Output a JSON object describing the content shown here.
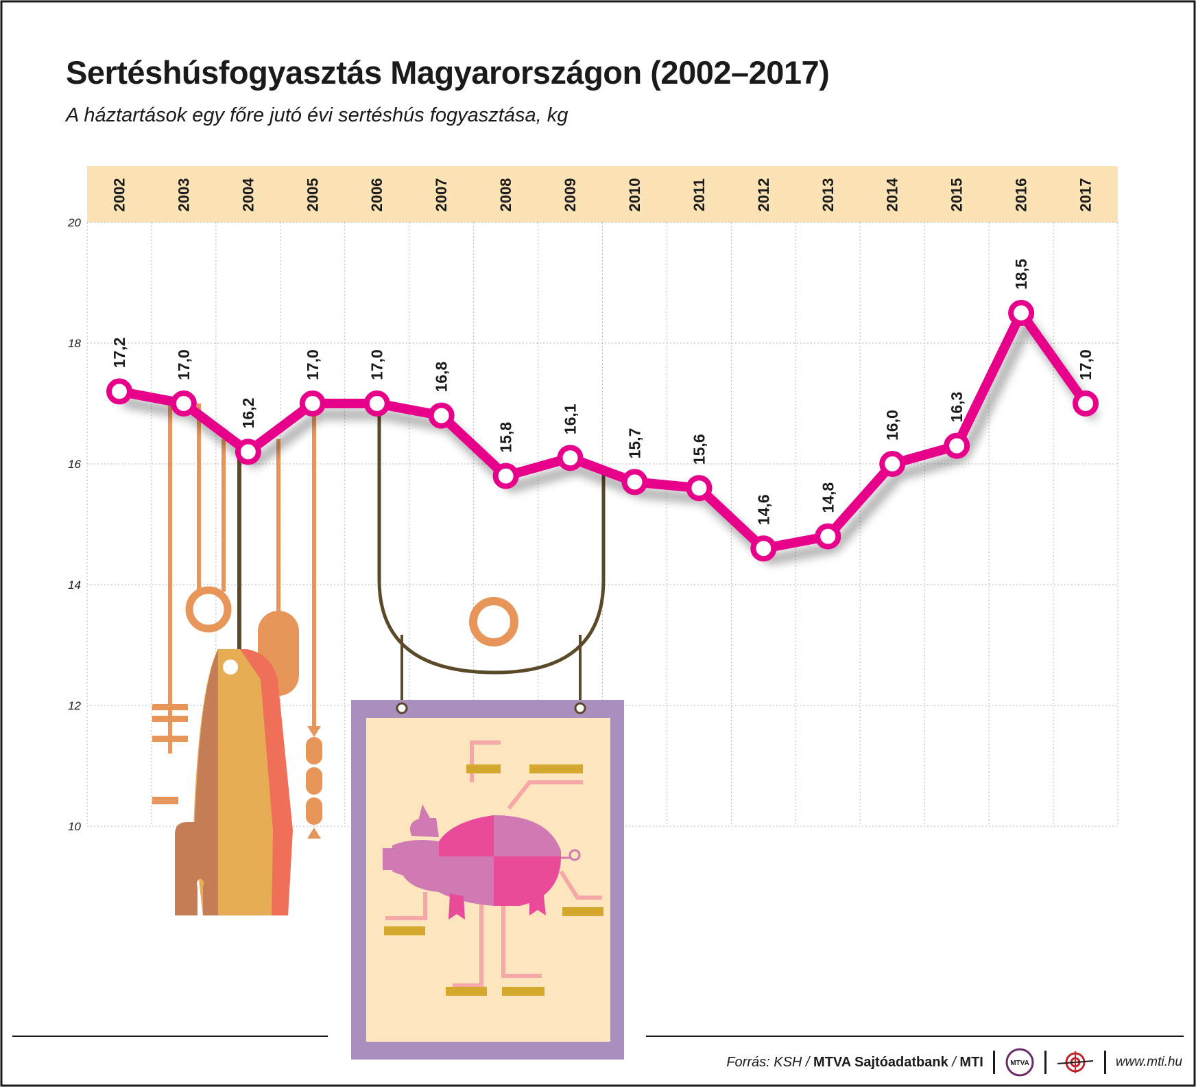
{
  "header": {
    "title": "Sertéshúsfogyasztás Magyarországon (2002–2017)",
    "subtitle": "A háztartások egy főre jutó évi sertéshús fogyasztása, kg"
  },
  "footer": {
    "source_prefix": "Forrás: KSH / ",
    "source_bold": "MTVA Sajtóadatbank",
    "source_sep": " / ",
    "source_end": "MTI",
    "logo_text": "MTVA",
    "url": "www.mti.hu"
  },
  "colors": {
    "line": "#e6008a",
    "header_band": "#fce3b5",
    "grid": "#b5b5b5",
    "orange": "#e8955a",
    "frame_purple": "#a98fbe",
    "sign_fill": "#fde6bd",
    "hanger": "#5a4a2a"
  },
  "illustration": {
    "icons": [
      "butcher-tools-icon",
      "hanging-ham-icon",
      "hanging-sausages-icon",
      "pig-cuts-sign-icon"
    ]
  },
  "chart_data": {
    "type": "line",
    "title": "Sertéshúsfogyasztás Magyarországon (2002–2017)",
    "subtitle": "A háztartások egy főre jutó évi sertéshús fogyasztása, kg",
    "xlabel": "",
    "ylabel": "",
    "categories": [
      "2002",
      "2003",
      "2004",
      "2005",
      "2006",
      "2007",
      "2008",
      "2009",
      "2010",
      "2011",
      "2012",
      "2013",
      "2014",
      "2015",
      "2016",
      "2017"
    ],
    "series": [
      {
        "values": [
          17.2,
          17.0,
          16.2,
          17.0,
          17.0,
          16.8,
          15.8,
          16.1,
          15.7,
          15.6,
          14.6,
          14.8,
          16.0,
          16.3,
          18.5,
          17.0
        ],
        "labels": [
          "17,2",
          "17,0",
          "16,2",
          "17,0",
          "17,0",
          "16,8",
          "15,8",
          "16,1",
          "15,7",
          "15,6",
          "14,6",
          "14,8",
          "16,0",
          "16,3",
          "18,5",
          "17,0"
        ]
      }
    ],
    "ylim": [
      10,
      20
    ],
    "yticks": [
      10,
      12,
      14,
      16,
      18,
      20
    ],
    "grid": true,
    "legend": "none"
  }
}
